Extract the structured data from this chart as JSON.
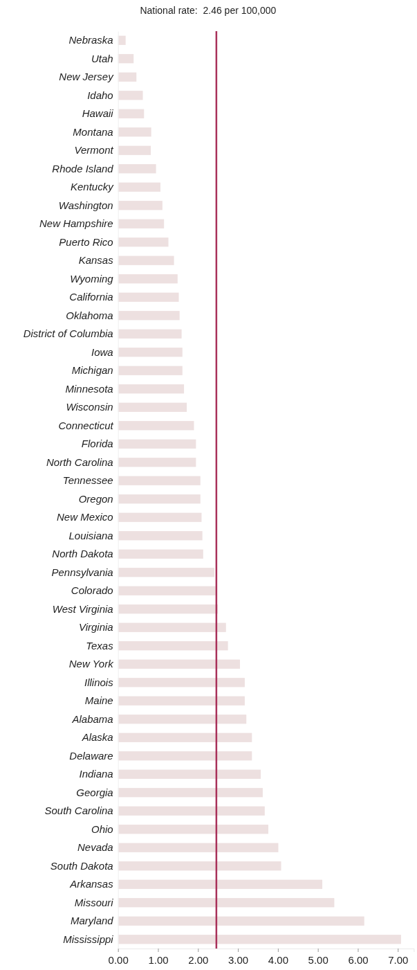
{
  "chart_data": {
    "type": "bar",
    "orientation": "horizontal",
    "categories": [
      "Nebraska",
      "Utah",
      "New Jersey",
      "Idaho",
      "Hawaii",
      "Montana",
      "Vermont",
      "Rhode Island",
      "Kentucky",
      "Washington",
      "New Hampshire",
      "Puerto Rico",
      "Kansas",
      "Wyoming",
      "California",
      "Oklahoma",
      "District of Columbia",
      "Iowa",
      "Michigan",
      "Minnesota",
      "Wisconsin",
      "Connecticut",
      "Florida",
      "North Carolina",
      "Tennessee",
      "Oregon",
      "New Mexico",
      "Louisiana",
      "North Dakota",
      "Pennsylvania",
      "Colorado",
      "West Virginia",
      "Virginia",
      "Texas",
      "New York",
      "Illinois",
      "Maine",
      "Alabama",
      "Alaska",
      "Delaware",
      "Indiana",
      "Georgia",
      "South Carolina",
      "Ohio",
      "Nevada",
      "South Dakota",
      "Arkansas",
      "Missouri",
      "Maryland",
      "Mississippi"
    ],
    "values": [
      0.19,
      0.39,
      0.46,
      0.62,
      0.65,
      0.83,
      0.82,
      0.95,
      1.06,
      1.11,
      1.15,
      1.26,
      1.4,
      1.49,
      1.52,
      1.54,
      1.59,
      1.61,
      1.61,
      1.65,
      1.72,
      1.9,
      1.95,
      1.95,
      2.06,
      2.06,
      2.09,
      2.11,
      2.13,
      2.41,
      2.44,
      2.5,
      2.7,
      2.75,
      3.05,
      3.17,
      3.17,
      3.21,
      3.35,
      3.35,
      3.57,
      3.62,
      3.67,
      3.76,
      4.01,
      4.08,
      5.11,
      5.41,
      6.16,
      7.08
    ],
    "color": "#ede0e0",
    "xlim": [
      0,
      7.4
    ],
    "xticks": [
      {
        "value": 0,
        "label": "0.00"
      },
      {
        "value": 1,
        "label": "1.00"
      },
      {
        "value": 2,
        "label": "2.00"
      },
      {
        "value": 3,
        "label": "3.00"
      },
      {
        "value": 4,
        "label": "4.00"
      },
      {
        "value": 5,
        "label": "5.00"
      },
      {
        "value": 6,
        "label": "6.00"
      },
      {
        "value": 7,
        "label": "7.00"
      }
    ],
    "ref_lines": [
      {
        "axis": "x",
        "value": 2.46,
        "label": "National rate:  2.46 per 100,000",
        "color": "#a8315a"
      }
    ],
    "grid": false
  }
}
